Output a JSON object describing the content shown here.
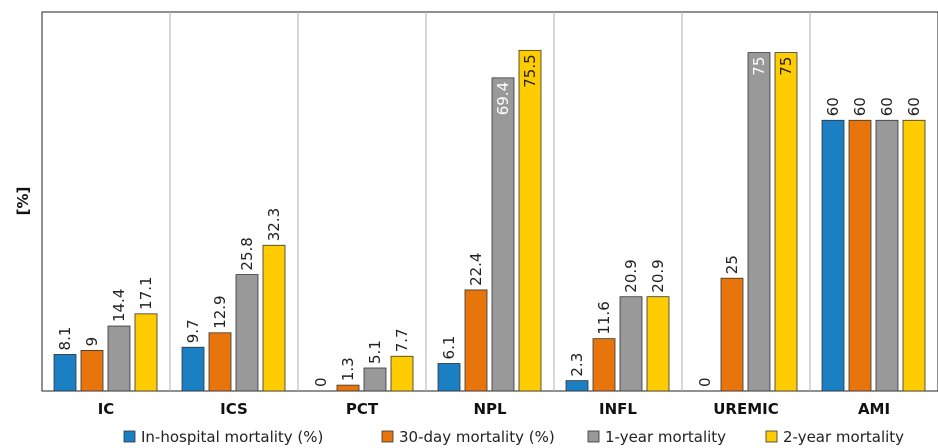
{
  "chart_data": {
    "type": "bar",
    "categories": [
      "IC",
      "ICS",
      "PCT",
      "NPL",
      "INFL",
      "UREMIC",
      "AMI"
    ],
    "ylabel": "[%]",
    "xlabel": "",
    "ylim": [
      0,
      84
    ],
    "grid": "vertical separators between categories",
    "legend_position": "bottom",
    "series": [
      {
        "name": "In-hospital mortality (%)",
        "color": "#1b7fc4",
        "values": [
          8.1,
          9.7,
          0,
          6.1,
          2.3,
          0,
          60
        ]
      },
      {
        "name": "30-day mortality (%)",
        "color": "#e8750c",
        "values": [
          9,
          12.9,
          1.3,
          22.4,
          11.6,
          25,
          60
        ]
      },
      {
        "name": "1-year mortality",
        "color": "#999999",
        "values": [
          14.4,
          25.8,
          5.1,
          69.4,
          20.9,
          75,
          60
        ]
      },
      {
        "name": "2-year mortality",
        "color": "#ffcc00",
        "values": [
          17.1,
          32.3,
          7.7,
          75.5,
          20.9,
          75,
          60
        ]
      }
    ],
    "data_labels": [
      [
        "8.1",
        "9.7",
        "0",
        "6.1",
        "2.3",
        "0",
        "60"
      ],
      [
        "9",
        "12.9",
        "1.3",
        "22.4",
        "11.6",
        "25",
        "60"
      ],
      [
        "14.4",
        "25.8",
        "5.1",
        "69.4",
        "20.9",
        "75",
        "60"
      ],
      [
        "17.1",
        "32.3",
        "7.7",
        "75.5",
        "20.9",
        "75",
        "60"
      ]
    ]
  }
}
